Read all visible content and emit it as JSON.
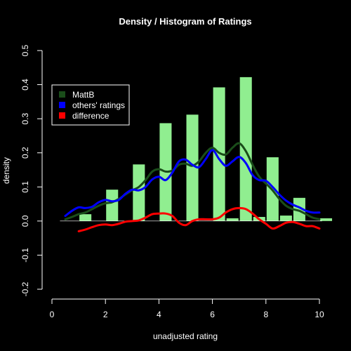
{
  "chart_data": {
    "type": "bar",
    "title": "Density / Histogram of Ratings",
    "xlabel": "unadjusted rating",
    "ylabel": "density",
    "xlim": [
      0,
      10
    ],
    "ylim": [
      -0.2,
      0.5
    ],
    "x_ticks": [
      0,
      2,
      4,
      6,
      8,
      10
    ],
    "y_ticks": [
      -0.2,
      -0.1,
      0.0,
      0.1,
      0.2,
      0.3,
      0.4,
      0.5
    ],
    "y_tick_labels": [
      "-0.2",
      "-0.1",
      "0.0",
      "0.1",
      "0.2",
      "0.3",
      "0.4",
      "0.5"
    ],
    "bar_color": "#90ee90",
    "histogram": {
      "bin_width": 0.5,
      "bin_starts": [
        0.5,
        1.0,
        1.5,
        2.0,
        2.5,
        3.0,
        3.5,
        4.0,
        4.5,
        5.0,
        5.5,
        6.0,
        6.5,
        7.0,
        7.5,
        8.0,
        8.5,
        9.0,
        9.5,
        10.0
      ],
      "values": [
        0.0,
        0.02,
        0.0,
        0.092,
        0.0,
        0.166,
        0.0,
        0.287,
        0.0,
        0.312,
        0.0,
        0.392,
        0.008,
        0.422,
        0.012,
        0.187,
        0.016,
        0.068,
        0.0,
        0.008
      ]
    },
    "legend": {
      "position": "top-left",
      "entries": [
        {
          "label": "MattB",
          "color": "#1a4d1a"
        },
        {
          "label": "others' ratings",
          "color": "#0000ff"
        },
        {
          "label": "difference",
          "color": "#ff0000"
        }
      ]
    },
    "series": [
      {
        "name": "MattB",
        "color": "#1a4d1a",
        "x": [
          0.5,
          0.75,
          1.0,
          1.25,
          1.5,
          1.75,
          2.0,
          2.25,
          2.5,
          2.75,
          3.0,
          3.25,
          3.5,
          3.75,
          4.0,
          4.25,
          4.5,
          4.75,
          5.0,
          5.25,
          5.5,
          5.75,
          6.0,
          6.25,
          6.5,
          6.75,
          7.0,
          7.25,
          7.5,
          7.75,
          8.0,
          8.25,
          8.5,
          8.75,
          9.0,
          9.25,
          9.5,
          9.75,
          10.0
        ],
        "y": [
          0.005,
          0.012,
          0.02,
          0.025,
          0.035,
          0.045,
          0.052,
          0.055,
          0.065,
          0.078,
          0.09,
          0.1,
          0.12,
          0.145,
          0.152,
          0.145,
          0.148,
          0.165,
          0.168,
          0.162,
          0.175,
          0.2,
          0.215,
          0.2,
          0.195,
          0.215,
          0.228,
          0.205,
          0.165,
          0.13,
          0.11,
          0.09,
          0.065,
          0.045,
          0.035,
          0.03,
          0.02,
          0.01,
          0.005
        ]
      },
      {
        "name": "others' ratings",
        "color": "#0000ff",
        "x": [
          0.5,
          0.75,
          1.0,
          1.25,
          1.5,
          1.75,
          2.0,
          2.25,
          2.5,
          2.75,
          3.0,
          3.25,
          3.5,
          3.75,
          4.0,
          4.25,
          4.5,
          4.75,
          5.0,
          5.25,
          5.5,
          5.75,
          6.0,
          6.25,
          6.5,
          6.75,
          7.0,
          7.25,
          7.5,
          7.75,
          8.0,
          8.25,
          8.5,
          8.75,
          9.0,
          9.25,
          9.5,
          9.75,
          10.0
        ],
        "y": [
          0.015,
          0.03,
          0.04,
          0.038,
          0.042,
          0.055,
          0.062,
          0.058,
          0.062,
          0.08,
          0.092,
          0.09,
          0.1,
          0.122,
          0.13,
          0.12,
          0.142,
          0.175,
          0.18,
          0.165,
          0.158,
          0.182,
          0.208,
          0.182,
          0.162,
          0.175,
          0.188,
          0.17,
          0.135,
          0.12,
          0.118,
          0.1,
          0.078,
          0.06,
          0.048,
          0.04,
          0.03,
          0.025,
          0.025
        ]
      },
      {
        "name": "difference",
        "color": "#ff0000",
        "x": [
          1.0,
          1.25,
          1.5,
          1.75,
          2.0,
          2.25,
          2.5,
          2.75,
          3.0,
          3.25,
          3.5,
          3.75,
          4.0,
          4.25,
          4.5,
          4.75,
          5.0,
          5.25,
          5.5,
          5.75,
          6.0,
          6.25,
          6.5,
          6.75,
          7.0,
          7.25,
          7.5,
          7.75,
          8.0,
          8.25,
          8.5,
          8.75,
          9.0,
          9.25,
          9.5,
          9.75,
          10.0
        ],
        "y": [
          -0.03,
          -0.025,
          -0.018,
          -0.012,
          -0.01,
          -0.012,
          -0.008,
          -0.002,
          0.0,
          0.002,
          0.01,
          0.02,
          0.022,
          0.022,
          0.015,
          -0.005,
          -0.012,
          0.0,
          0.005,
          0.005,
          0.005,
          0.01,
          0.025,
          0.035,
          0.038,
          0.035,
          0.022,
          0.005,
          -0.008,
          -0.022,
          -0.015,
          -0.005,
          -0.003,
          -0.008,
          -0.015,
          -0.015,
          -0.022
        ]
      }
    ]
  }
}
